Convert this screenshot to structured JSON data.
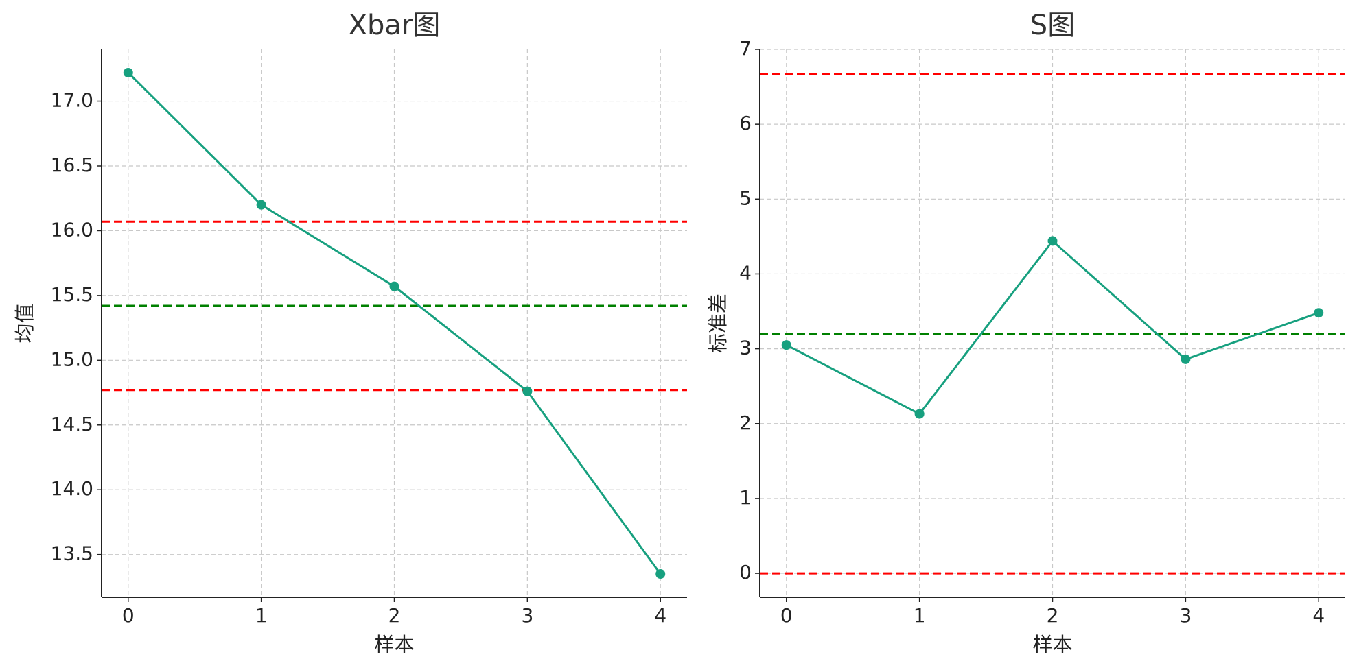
{
  "chart_data": [
    {
      "type": "line",
      "title": "Xbar图",
      "xlabel": "样本",
      "ylabel": "均值",
      "x": [
        0,
        1,
        2,
        3,
        4
      ],
      "values": [
        17.22,
        16.2,
        15.57,
        14.76,
        13.35
      ],
      "color": "#17a07f",
      "reference_lines": [
        {
          "value": 16.07,
          "color": "#ff0000"
        },
        {
          "value": 15.42,
          "color": "#008000"
        },
        {
          "value": 14.77,
          "color": "#ff0000"
        }
      ],
      "xlim": [
        -0.2,
        4.2
      ],
      "xticks": [
        0,
        1,
        2,
        3,
        4
      ],
      "ylim": [
        13.17,
        17.4
      ],
      "yticks": [
        13.5,
        {
          "value": 14,
          "label": "14.0"
        },
        14.5,
        {
          "value": 15,
          "label": "15.0"
        },
        15.5,
        {
          "value": 16,
          "label": "16.0"
        },
        16.5,
        {
          "value": 17,
          "label": "17.0"
        }
      ],
      "grid": true
    },
    {
      "type": "line",
      "title": "S图",
      "xlabel": "样本",
      "ylabel": "标准差",
      "x": [
        0,
        1,
        2,
        3,
        4
      ],
      "values": [
        3.05,
        2.13,
        4.44,
        2.86,
        3.48
      ],
      "color": "#17a07f",
      "reference_lines": [
        {
          "value": 6.67,
          "color": "#ff0000"
        },
        {
          "value": 3.2,
          "color": "#008000"
        },
        {
          "value": 0,
          "color": "#ff0000"
        }
      ],
      "xlim": [
        -0.2,
        4.2
      ],
      "xticks": [
        0,
        1,
        2,
        3,
        4
      ],
      "ylim": [
        -0.32,
        7
      ],
      "yticks": [
        0,
        1,
        2,
        3,
        4,
        5,
        6,
        7
      ],
      "grid": true
    }
  ]
}
